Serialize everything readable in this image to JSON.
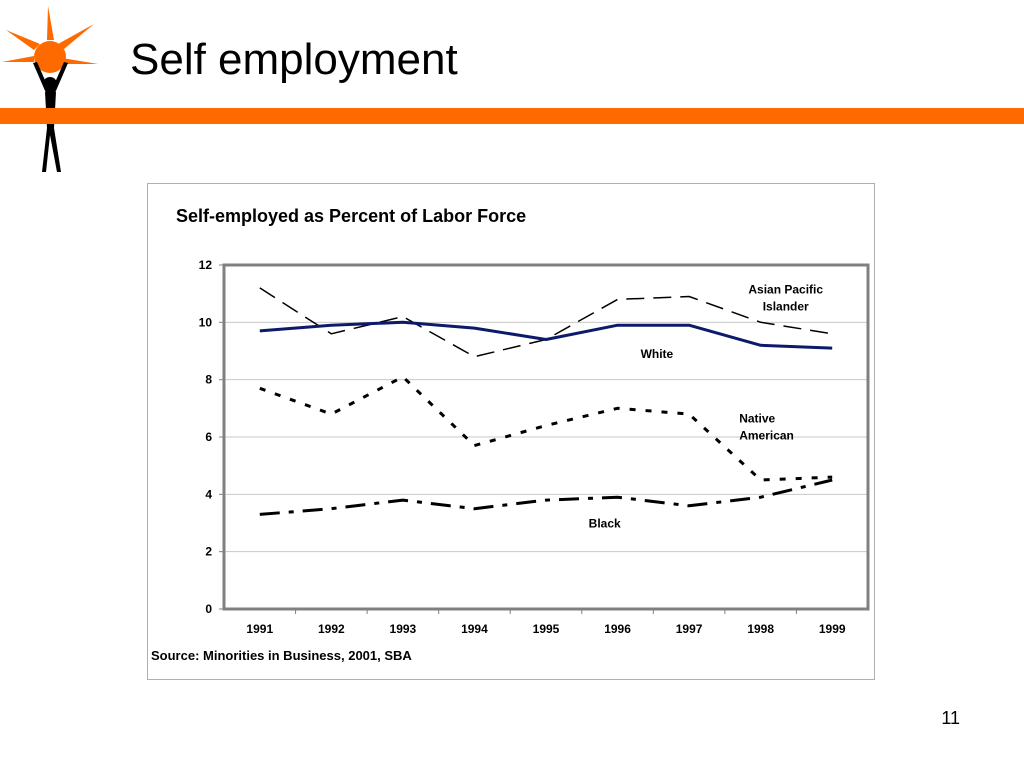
{
  "slide": {
    "title": "Self employment",
    "page_number": "11"
  },
  "colors": {
    "accent": "#ff6a00",
    "white_line": "#0d1a6b",
    "series_line": "#000000"
  },
  "icons": [
    "sun-person-logo-icon"
  ],
  "chart_data": {
    "type": "line",
    "title": "Self-employed as Percent of Labor Force",
    "xlabel": "",
    "ylabel": "",
    "x": [
      "1991",
      "1992",
      "1993",
      "1994",
      "1995",
      "1996",
      "1997",
      "1998",
      "1999"
    ],
    "ylim": [
      0,
      12
    ],
    "yticks": [
      "0",
      "2",
      "4",
      "6",
      "8",
      "10",
      "12"
    ],
    "grid": true,
    "series": [
      {
        "name": "Asian Pacific Islander",
        "label_lines": [
          "Asian Pacific",
          "Islander"
        ],
        "style": "long-dash",
        "values": [
          11.2,
          9.6,
          10.2,
          8.8,
          9.4,
          10.8,
          10.9,
          10.0,
          9.6
        ]
      },
      {
        "name": "White",
        "label_lines": [
          "White"
        ],
        "style": "solid",
        "values": [
          9.7,
          9.9,
          10.0,
          9.8,
          9.4,
          9.9,
          9.9,
          9.2,
          9.1
        ]
      },
      {
        "name": "Native American",
        "label_lines": [
          "Native",
          "American"
        ],
        "style": "short-dash",
        "values": [
          7.7,
          6.8,
          8.1,
          5.7,
          6.4,
          7.0,
          6.8,
          4.5,
          4.6
        ]
      },
      {
        "name": "Black",
        "label_lines": [
          "Black"
        ],
        "style": "dash-dot",
        "values": [
          3.3,
          3.5,
          3.8,
          3.5,
          3.8,
          3.9,
          3.6,
          3.9,
          4.5
        ]
      }
    ],
    "source": "Source: Minorities in Business, 2001, SBA"
  }
}
